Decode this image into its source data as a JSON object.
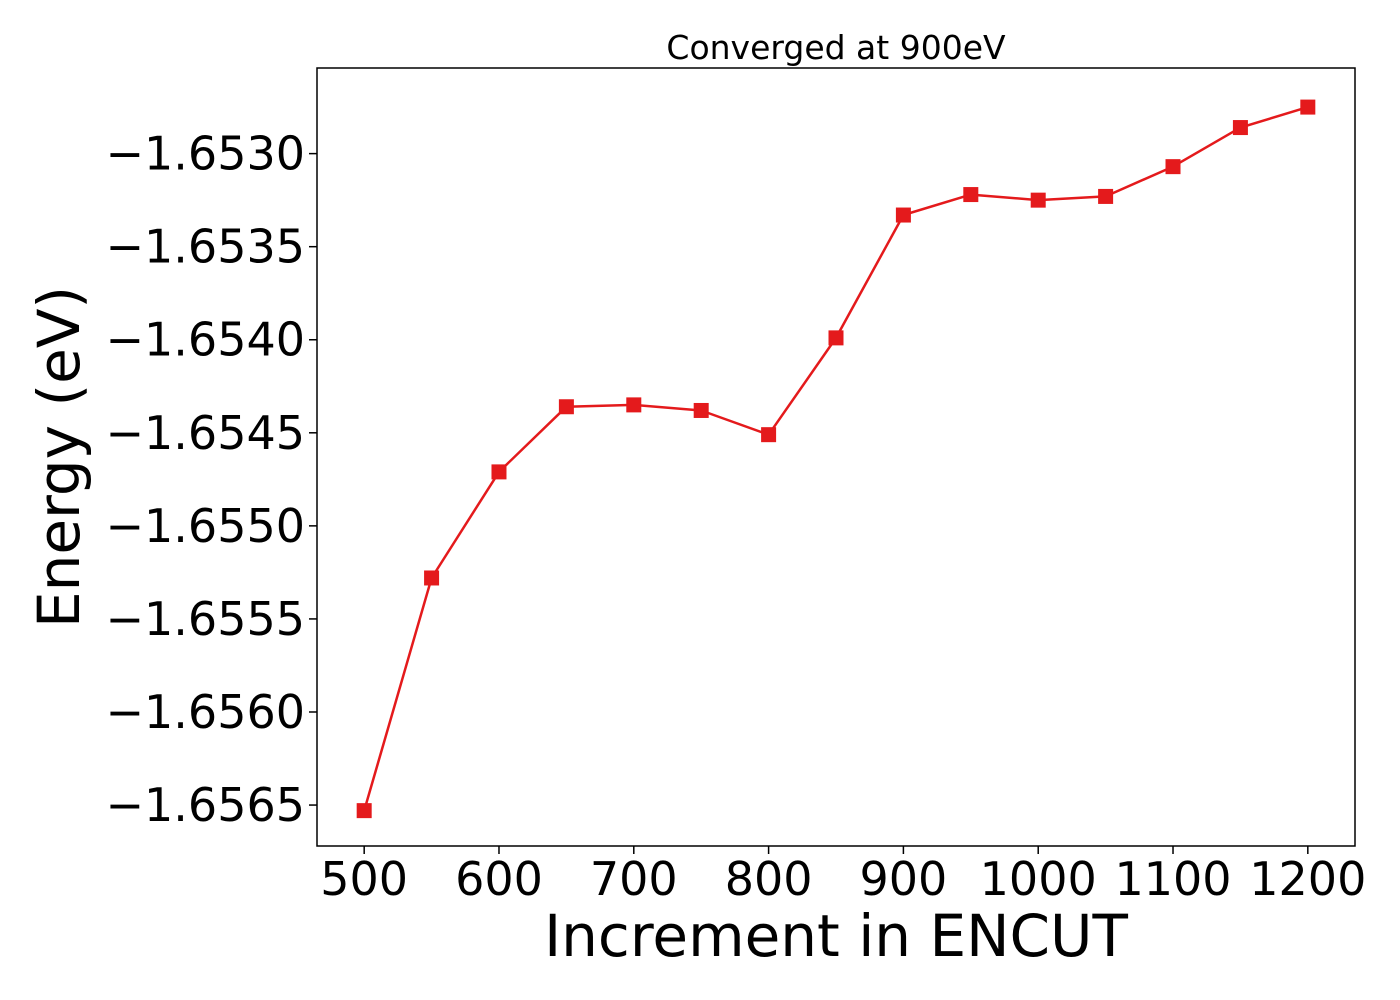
{
  "chart_data": {
    "type": "line",
    "title": "Converged at 900eV",
    "xlabel": "Increment in ENCUT",
    "ylabel": "Energy (eV)",
    "x": [
      500,
      550,
      600,
      650,
      700,
      750,
      800,
      850,
      900,
      950,
      1000,
      1050,
      1100,
      1150,
      1200
    ],
    "series": [
      {
        "name": "",
        "color": "#e41a1c",
        "marker": "square",
        "values": [
          -1.65653,
          -1.65528,
          -1.65471,
          -1.65436,
          -1.65435,
          -1.65438,
          -1.65451,
          -1.65399,
          -1.65333,
          -1.65322,
          -1.65325,
          -1.65323,
          -1.65307,
          -1.65286,
          -1.65275
        ]
      }
    ],
    "xlim": [
      465,
      1235
    ],
    "ylim": [
      -1.65672,
      -1.65254
    ],
    "xticks": [
      500,
      600,
      700,
      800,
      900,
      1000,
      1100,
      1200
    ],
    "xtick_labels": [
      "500",
      "600",
      "700",
      "800",
      "900",
      "1000",
      "1100",
      "1200"
    ],
    "yticks": [
      -1.6565,
      -1.656,
      -1.6555,
      -1.655,
      -1.6545,
      -1.654,
      -1.6535,
      -1.653
    ],
    "ytick_labels": [
      "−1.6565",
      "−1.6560",
      "−1.6555",
      "−1.6550",
      "−1.6545",
      "−1.6540",
      "−1.6535",
      "−1.6530"
    ],
    "grid": false,
    "legend": "none"
  }
}
